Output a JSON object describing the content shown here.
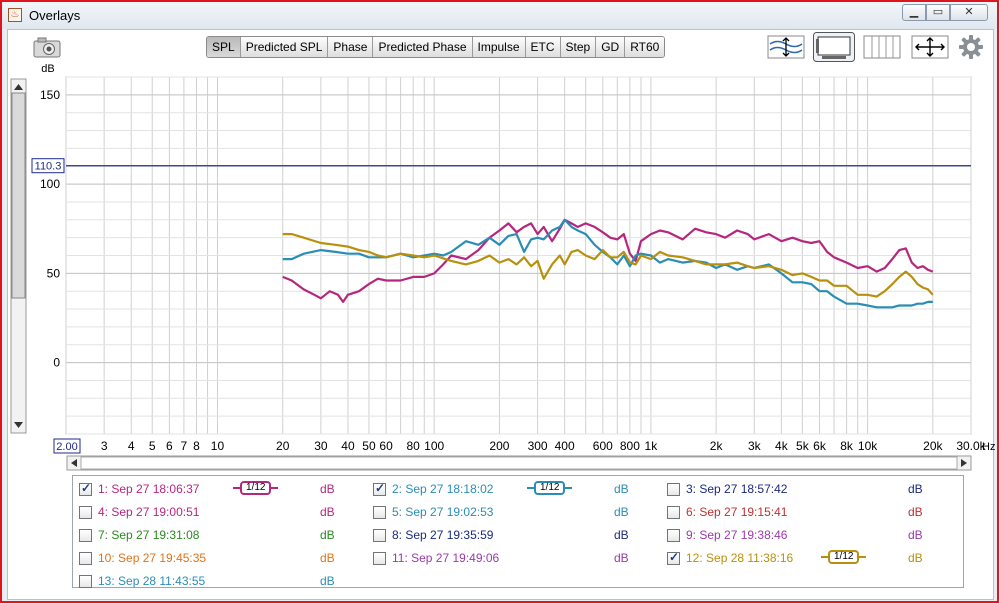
{
  "window": {
    "title": "Overlays",
    "min_icon": "minimize-icon",
    "max_icon": "maximize-icon",
    "close_icon": "close-icon"
  },
  "toolbar": {
    "tabs": [
      {
        "label": "SPL",
        "active": true
      },
      {
        "label": "Predicted SPL"
      },
      {
        "label": "Phase"
      },
      {
        "label": "Predicted Phase"
      },
      {
        "label": "Impulse"
      },
      {
        "label": "ETC"
      },
      {
        "label": "Step"
      },
      {
        "label": "GD"
      },
      {
        "label": "RT60"
      }
    ],
    "right_tools": [
      "scale-controls-icon",
      "view-layout-icon",
      "vertical-lines-icon",
      "resize-arrows-icon",
      "gear-icon"
    ]
  },
  "chart_data": {
    "type": "line",
    "ylabel": "dB",
    "xunit": "Hz",
    "xscale": "log",
    "xlim": [
      2,
      30000
    ],
    "ylim": [
      -40,
      160
    ],
    "yticks": [
      0,
      50,
      100,
      150
    ],
    "xticks": [
      {
        "v": 2,
        "t": "2.00"
      },
      {
        "v": 3,
        "t": "3"
      },
      {
        "v": 4,
        "t": "4"
      },
      {
        "v": 5,
        "t": "5"
      },
      {
        "v": 6,
        "t": "6"
      },
      {
        "v": 7,
        "t": "7"
      },
      {
        "v": 8,
        "t": "8"
      },
      {
        "v": 10,
        "t": "10"
      },
      {
        "v": 20,
        "t": "20"
      },
      {
        "v": 30,
        "t": "30"
      },
      {
        "v": 40,
        "t": "40"
      },
      {
        "v": 50,
        "t": "50"
      },
      {
        "v": 60,
        "t": "60"
      },
      {
        "v": 80,
        "t": "80"
      },
      {
        "v": 100,
        "t": "100"
      },
      {
        "v": 200,
        "t": "200"
      },
      {
        "v": 300,
        "t": "300"
      },
      {
        "v": 400,
        "t": "400"
      },
      {
        "v": 600,
        "t": "600"
      },
      {
        "v": 800,
        "t": "800"
      },
      {
        "v": 1000,
        "t": "1k"
      },
      {
        "v": 2000,
        "t": "2k"
      },
      {
        "v": 3000,
        "t": "3k"
      },
      {
        "v": 4000,
        "t": "4k"
      },
      {
        "v": 5000,
        "t": "5k"
      },
      {
        "v": 6000,
        "t": "6k"
      },
      {
        "v": 8000,
        "t": "8k"
      },
      {
        "v": 10000,
        "t": "10k"
      },
      {
        "v": 20000,
        "t": "20k"
      },
      {
        "v": 30000,
        "t": "30.0k"
      }
    ],
    "xaxis_start_label": "2.00",
    "marker": {
      "value": 110.3,
      "label": "110.3",
      "color": "#1f2a8a"
    },
    "grid": true,
    "series": [
      {
        "name": "1: Sep 27 18:06:37",
        "color": "#b5277f",
        "x": [
          20,
          22,
          25,
          28,
          30,
          33,
          36,
          38,
          40,
          45,
          50,
          55,
          60,
          70,
          80,
          90,
          100,
          110,
          120,
          140,
          160,
          180,
          200,
          220,
          240,
          260,
          280,
          300,
          320,
          350,
          380,
          400,
          430,
          460,
          500,
          550,
          600,
          650,
          700,
          750,
          800,
          850,
          900,
          1000,
          1100,
          1200,
          1400,
          1600,
          1800,
          2000,
          2200,
          2500,
          2800,
          3000,
          3500,
          4000,
          4500,
          5000,
          5500,
          6000,
          6500,
          7000,
          8000,
          9000,
          10000,
          11000,
          12000,
          13000,
          14000,
          15000,
          16000,
          17000,
          18000,
          19000,
          20000
        ],
        "y": [
          48,
          46,
          41,
          38,
          36,
          40,
          38,
          34,
          38,
          40,
          44,
          47,
          46,
          46,
          48,
          48,
          50,
          55,
          60,
          58,
          63,
          70,
          74,
          78,
          73,
          76,
          78,
          72,
          76,
          68,
          75,
          80,
          78,
          76,
          78,
          76,
          73,
          70,
          69,
          72,
          61,
          57,
          68,
          72,
          74,
          73,
          69,
          75,
          73,
          72,
          70,
          74,
          72,
          69,
          72,
          68,
          70,
          68,
          67,
          68,
          62,
          59,
          56,
          53,
          54,
          51,
          53,
          58,
          63,
          64,
          56,
          53,
          54,
          52,
          51
        ]
      },
      {
        "name": "2: Sep 27 18:18:02",
        "color": "#2a8db5",
        "x": [
          20,
          22,
          25,
          30,
          35,
          40,
          45,
          50,
          60,
          70,
          80,
          90,
          100,
          110,
          120,
          140,
          160,
          180,
          200,
          220,
          240,
          260,
          280,
          300,
          320,
          350,
          380,
          400,
          430,
          460,
          500,
          550,
          600,
          650,
          700,
          750,
          800,
          850,
          900,
          1000,
          1100,
          1200,
          1400,
          1600,
          1800,
          2000,
          2200,
          2500,
          2800,
          3000,
          3500,
          4000,
          4500,
          5000,
          5500,
          6000,
          6500,
          7000,
          8000,
          9000,
          10000,
          11000,
          12000,
          13000,
          14000,
          15000,
          16000,
          17000,
          18000,
          19000,
          20000
        ],
        "y": [
          58,
          58,
          61,
          63,
          62,
          61,
          61,
          59,
          59,
          61,
          59,
          60,
          61,
          60,
          62,
          68,
          66,
          70,
          66,
          71,
          72,
          62,
          69,
          70,
          69,
          74,
          76,
          80,
          76,
          74,
          72,
          66,
          62,
          59,
          55,
          60,
          54,
          60,
          61,
          60,
          56,
          58,
          56,
          57,
          56,
          53,
          55,
          52,
          54,
          53,
          55,
          50,
          45,
          45,
          44,
          40,
          40,
          37,
          33,
          33,
          32,
          31,
          31,
          31,
          32,
          32,
          32,
          33,
          33,
          34,
          34
        ]
      },
      {
        "name": "12: Sep 28 11:38:16",
        "color": "#b8900c",
        "x": [
          20,
          22,
          25,
          30,
          35,
          40,
          45,
          50,
          55,
          60,
          70,
          80,
          90,
          100,
          120,
          140,
          160,
          180,
          200,
          220,
          240,
          260,
          280,
          300,
          320,
          350,
          380,
          400,
          430,
          460,
          500,
          550,
          600,
          650,
          700,
          750,
          800,
          850,
          900,
          1000,
          1100,
          1200,
          1400,
          1600,
          1800,
          2000,
          2200,
          2500,
          2800,
          3000,
          3500,
          4000,
          4500,
          5000,
          5500,
          6000,
          6500,
          7000,
          8000,
          9000,
          10000,
          11000,
          12000,
          13000,
          14000,
          15000,
          16000,
          17000,
          18000,
          19000,
          20000
        ],
        "y": [
          72,
          72,
          70,
          67,
          66,
          65,
          63,
          62,
          60,
          59,
          61,
          60,
          59,
          60,
          57,
          55,
          57,
          60,
          56,
          58,
          55,
          59,
          54,
          57,
          47,
          55,
          60,
          55,
          62,
          63,
          60,
          58,
          63,
          59,
          59,
          62,
          56,
          55,
          60,
          58,
          62,
          60,
          59,
          57,
          55,
          55,
          55,
          56,
          54,
          53,
          54,
          52,
          49,
          50,
          48,
          46,
          46,
          43,
          43,
          38,
          38,
          37,
          40,
          44,
          48,
          51,
          48,
          44,
          42,
          41,
          38
        ]
      }
    ]
  },
  "legend": {
    "unit": "dB",
    "items": [
      {
        "label": "1: Sep 27 18:06:37",
        "color": "#b5277f",
        "checked": true,
        "smoothing": "1/12"
      },
      {
        "label": "2: Sep 27 18:18:02",
        "color": "#2a8db5",
        "checked": true,
        "smoothing": "1/12"
      },
      {
        "label": "3: Sep 27 18:57:42",
        "color": "#1a2a80",
        "checked": false
      },
      {
        "label": "4: Sep 27 19:00:51",
        "color": "#b5277f",
        "checked": false
      },
      {
        "label": "5: Sep 27 19:02:53",
        "color": "#2a8db5",
        "checked": false
      },
      {
        "label": "6: Sep 27 19:15:41",
        "color": "#c03030",
        "checked": false
      },
      {
        "label": "7: Sep 27 19:31:08",
        "color": "#2a8a20",
        "checked": false
      },
      {
        "label": "8: Sep 27 19:35:59",
        "color": "#1a2a80",
        "checked": false
      },
      {
        "label": "9: Sep 27 19:38:46",
        "color": "#9a3aa8",
        "checked": false
      },
      {
        "label": "10: Sep 27 19:45:35",
        "color": "#e0731a",
        "checked": false
      },
      {
        "label": "11: Sep 27 19:49:06",
        "color": "#9a3aa8",
        "checked": false
      },
      {
        "label": "12: Sep 28 11:38:16",
        "color": "#b8900c",
        "checked": true,
        "smoothing": "1/12"
      },
      {
        "label": "13: Sep 28 11:43:55",
        "color": "#2a8db5",
        "checked": false
      }
    ]
  }
}
